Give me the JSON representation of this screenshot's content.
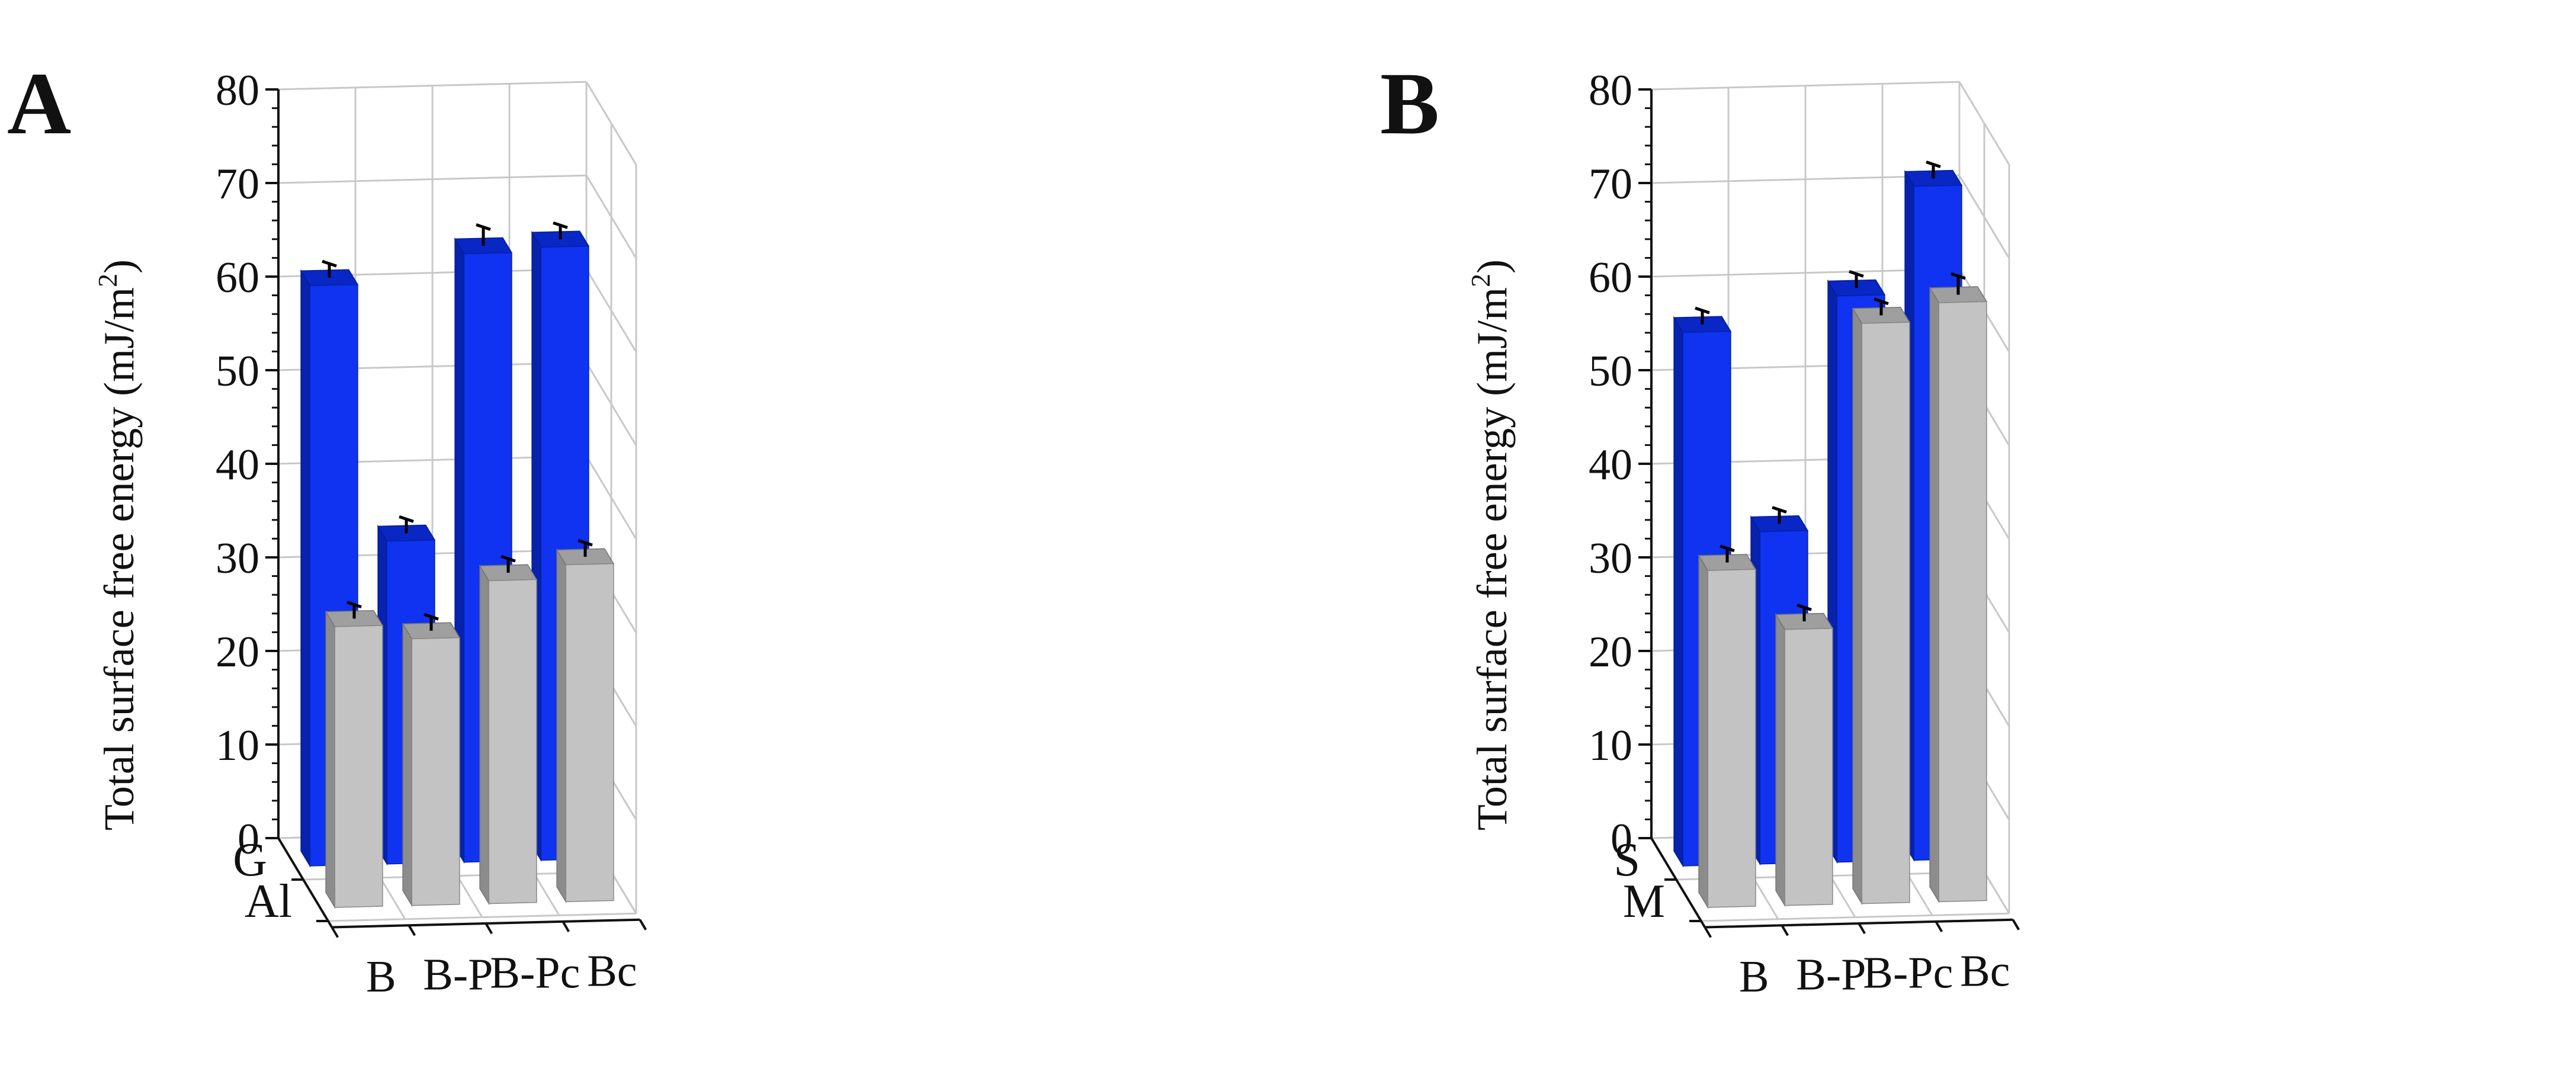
{
  "colors": {
    "front_series": "#c2c2c2",
    "back_series": "#0a2ff0",
    "grid": "#c8c8c8",
    "axis": "#111111"
  },
  "chart_data": [
    {
      "panel": "A",
      "type": "bar",
      "ylabel": "Total surface free energy (mJ/m2)",
      "ylabel_main": "Total surface free energy (mJ/m",
      "ylabel_sup": "2",
      "ylabel_tail": ")",
      "ylim": [
        0,
        80
      ],
      "yticks": [
        "0",
        "10",
        "20",
        "30",
        "40",
        "50",
        "60",
        "70",
        "80"
      ],
      "categories": [
        "B",
        "B-P",
        "B-Pc",
        "Bc"
      ],
      "series": [
        {
          "name": "G",
          "color": "back_series",
          "values": [
            62,
            34.5,
            65,
            65.5
          ],
          "errors": [
            1.5,
            1.5,
            2,
            1.5
          ]
        },
        {
          "name": "Al",
          "color": "front_series",
          "values": [
            30,
            28.5,
            34.5,
            36
          ],
          "errors": [
            1.5,
            1.5,
            1.5,
            1.5
          ]
        }
      ],
      "grid": true,
      "legend": "series names on depth axis (lower-left)"
    },
    {
      "panel": "B",
      "type": "bar",
      "ylabel": "Total surface free energy (mJ/m2)",
      "ylabel_main": "Total surface free energy (mJ/m",
      "ylabel_sup": "2",
      "ylabel_tail": ")",
      "ylim": [
        0,
        80
      ],
      "yticks": [
        "0",
        "10",
        "20",
        "30",
        "40",
        "50",
        "60",
        "70",
        "80"
      ],
      "categories": [
        "B",
        "B-P",
        "B-Pc",
        "Bc"
      ],
      "series": [
        {
          "name": "S",
          "color": "back_series",
          "values": [
            57,
            35.5,
            60.5,
            72
          ],
          "errors": [
            1.5,
            1.5,
            1.5,
            1.5
          ]
        },
        {
          "name": "M",
          "color": "front_series",
          "values": [
            36,
            29.5,
            62,
            64
          ],
          "errors": [
            1.5,
            1.5,
            1.5,
            2
          ]
        }
      ],
      "grid": true,
      "legend": "series names on depth axis (lower-left)"
    }
  ]
}
